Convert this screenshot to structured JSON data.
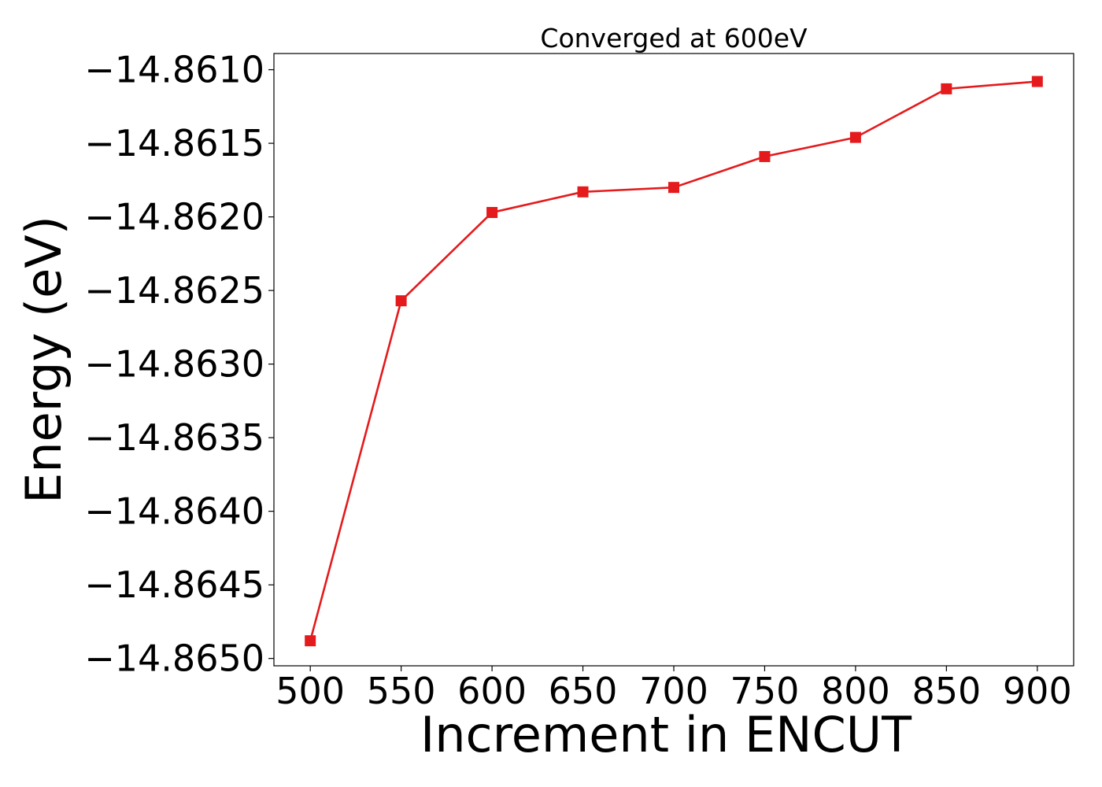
{
  "chart_data": {
    "type": "line",
    "title": "Converged at 600eV",
    "xlabel": "Increment in ENCUT",
    "ylabel": "Energy (eV)",
    "x": [
      500,
      550,
      600,
      650,
      700,
      750,
      800,
      850,
      900
    ],
    "xticks": [
      500,
      550,
      600,
      650,
      700,
      750,
      800,
      850,
      900
    ],
    "xtick_labels": [
      "500",
      "550",
      "600",
      "650",
      "700",
      "750",
      "800",
      "850",
      "900"
    ],
    "yticks": [
      -14.861,
      -14.8615,
      -14.862,
      -14.8625,
      -14.863,
      -14.8635,
      -14.864,
      -14.8645,
      -14.865
    ],
    "ytick_labels": [
      "−14.8610",
      "−14.8615",
      "−14.8620",
      "−14.8625",
      "−14.8630",
      "−14.8635",
      "−14.8640",
      "−14.8645",
      "−14.8650"
    ],
    "xlim": [
      480,
      920
    ],
    "ylim": [
      -14.86505,
      -14.86089
    ],
    "series": [
      {
        "values": [
          -14.86488,
          -14.86257,
          -14.86197,
          -14.86183,
          -14.8618,
          -14.86159,
          -14.86146,
          -14.86113,
          -14.86108
        ],
        "color": "#e41a1c",
        "marker": "square"
      }
    ],
    "grid": false,
    "legend": "none"
  }
}
